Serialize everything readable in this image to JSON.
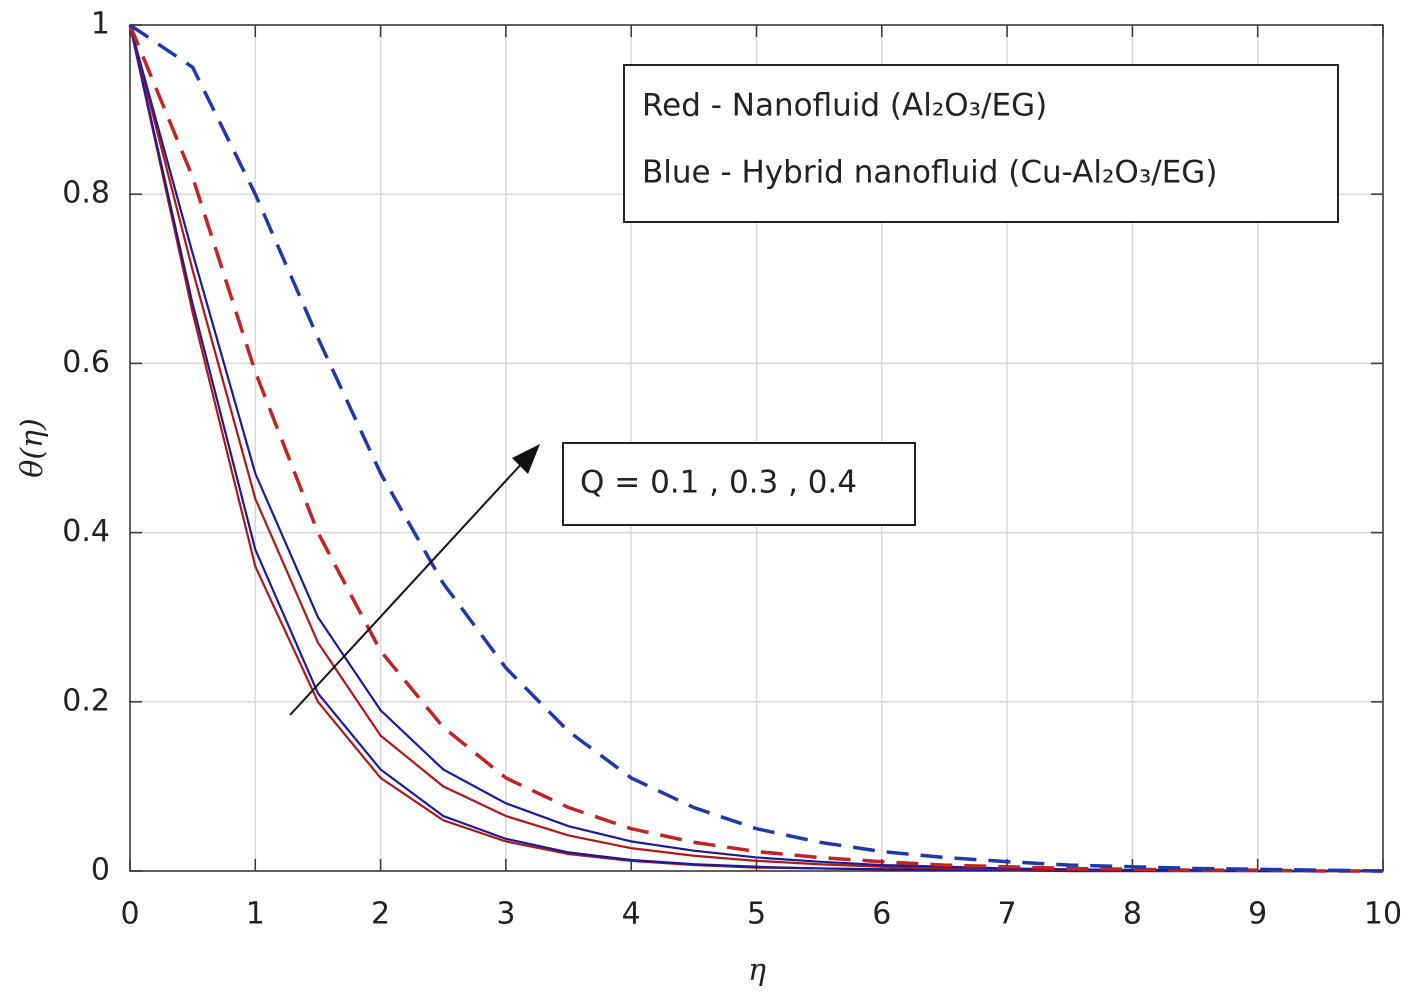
{
  "chart_data": {
    "type": "line",
    "xlabel": "η",
    "ylabel": "θ(η)",
    "x": [
      0,
      0.5,
      1,
      1.5,
      2,
      2.5,
      3,
      3.5,
      4,
      4.5,
      5,
      5.5,
      6,
      6.5,
      7,
      7.5,
      8,
      8.5,
      9,
      9.5,
      10
    ],
    "series": [
      {
        "color": "#b01818",
        "dashed": false,
        "values": [
          1,
          0.66,
          0.36,
          0.2,
          0.11,
          0.06,
          0.035,
          0.02,
          0.012,
          0.007,
          0.004,
          0.003,
          0.002,
          0.001,
          0.001,
          0,
          0,
          0,
          0,
          0,
          0
        ]
      },
      {
        "color": "#1a1a9a",
        "dashed": false,
        "values": [
          1,
          0.67,
          0.38,
          0.21,
          0.12,
          0.065,
          0.038,
          0.022,
          0.013,
          0.008,
          0.005,
          0.003,
          0.002,
          0.001,
          0.001,
          0,
          0,
          0,
          0,
          0,
          0
        ]
      },
      {
        "color": "#b01818",
        "dashed": false,
        "values": [
          1,
          0.71,
          0.44,
          0.27,
          0.16,
          0.1,
          0.065,
          0.042,
          0.027,
          0.018,
          0.012,
          0.008,
          0.005,
          0.003,
          0.002,
          0.001,
          0.001,
          0,
          0,
          0,
          0
        ]
      },
      {
        "color": "#1a1a9a",
        "dashed": false,
        "values": [
          1,
          0.73,
          0.47,
          0.3,
          0.19,
          0.12,
          0.08,
          0.053,
          0.035,
          0.024,
          0.016,
          0.011,
          0.007,
          0.005,
          0.003,
          0.002,
          0.001,
          0.001,
          0,
          0,
          0
        ]
      },
      {
        "color": "#c02424",
        "dashed": true,
        "values": [
          1,
          0.82,
          0.59,
          0.4,
          0.26,
          0.17,
          0.11,
          0.075,
          0.05,
          0.034,
          0.023,
          0.016,
          0.011,
          0.007,
          0.005,
          0.003,
          0.002,
          0.001,
          0.001,
          0,
          0
        ]
      },
      {
        "color": "#1f3aa8",
        "dashed": true,
        "values": [
          1,
          0.95,
          0.8,
          0.63,
          0.47,
          0.34,
          0.24,
          0.165,
          0.11,
          0.075,
          0.05,
          0.034,
          0.023,
          0.016,
          0.011,
          0.007,
          0.005,
          0.003,
          0.002,
          0.001,
          0
        ]
      }
    ],
    "xlim": [
      0,
      10
    ],
    "xticks": [
      0,
      1,
      2,
      3,
      4,
      5,
      6,
      7,
      8,
      9,
      10
    ],
    "ylim": [
      0,
      1
    ],
    "yticks": [
      0,
      0.2,
      0.4,
      0.6,
      0.8,
      1
    ],
    "grid": true,
    "annotations": [
      "Red - Nanofluid (Al₂O₃/EG)",
      "Blue - Hybrid nanofluid (Cu-Al₂O₃/EG)",
      "Q = 0.1 , 0.3 ,  0.4"
    ]
  }
}
